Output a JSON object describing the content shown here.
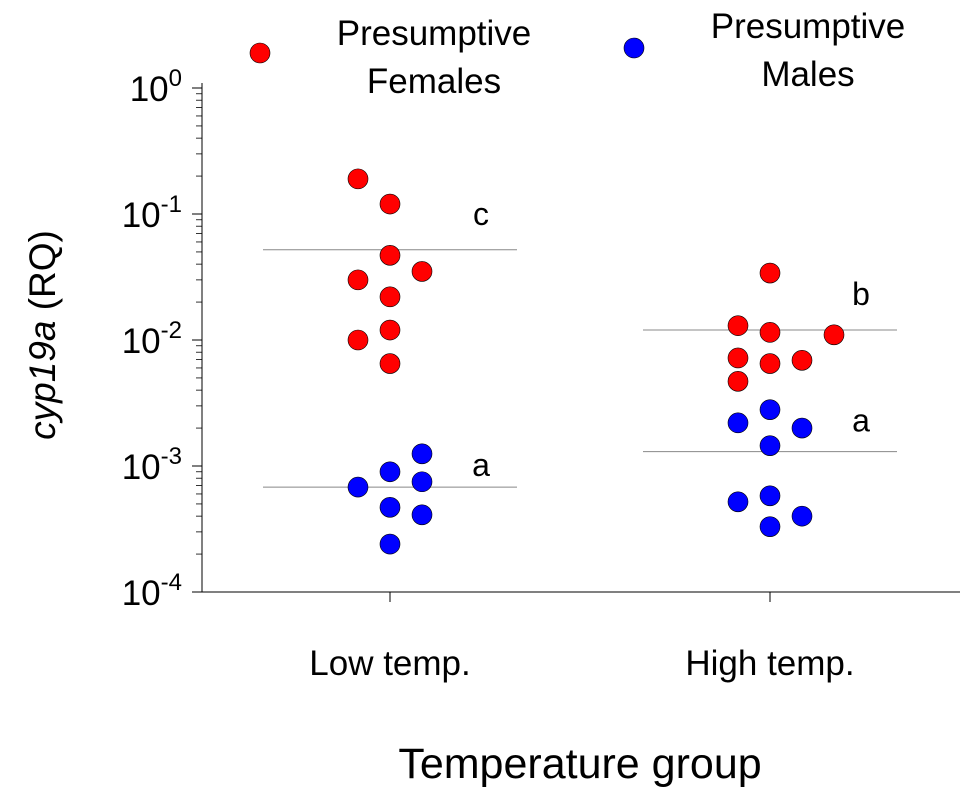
{
  "chart_data": {
    "type": "scatter",
    "xlabel": "Temperature group",
    "ylabel": {
      "italic": "cyp19a",
      "rest": " (RQ)"
    },
    "y_scale": "log",
    "ylim": [
      0.0001,
      1
    ],
    "y_ticks": [
      {
        "base": "10",
        "exp": "0",
        "value": 1
      },
      {
        "base": "10",
        "exp": "-1",
        "value": 0.1
      },
      {
        "base": "10",
        "exp": "-2",
        "value": 0.01
      },
      {
        "base": "10",
        "exp": "-3",
        "value": 0.001
      },
      {
        "base": "10",
        "exp": "-4",
        "value": 0.0001
      }
    ],
    "categories": [
      "Low temp.",
      "High temp."
    ],
    "legend": {
      "placement": "top",
      "entries": [
        {
          "lines": [
            "Presumptive",
            "Females"
          ],
          "color": "#ff0000"
        },
        {
          "lines": [
            "Presumptive",
            "Males"
          ],
          "color": "#0000ff"
        }
      ]
    },
    "series": [
      {
        "name": "Presumptive Females",
        "color": "#ff0000",
        "groups": [
          {
            "category": "Low temp.",
            "points": [
              {
                "offset": -1,
                "y": 0.19
              },
              {
                "offset": 0,
                "y": 0.12
              },
              {
                "offset": 0,
                "y": 0.047
              },
              {
                "offset": -1,
                "y": 0.03
              },
              {
                "offset": 1,
                "y": 0.035
              },
              {
                "offset": 0,
                "y": 0.022
              },
              {
                "offset": 0,
                "y": 0.012
              },
              {
                "offset": -1,
                "y": 0.01
              },
              {
                "offset": 0,
                "y": 0.0065
              }
            ],
            "mean": 0.052,
            "label": "c"
          },
          {
            "category": "High temp.",
            "points": [
              {
                "offset": 0,
                "y": 0.034
              },
              {
                "offset": -1,
                "y": 0.013
              },
              {
                "offset": 0,
                "y": 0.0115
              },
              {
                "offset": 2,
                "y": 0.011
              },
              {
                "offset": -1,
                "y": 0.0072
              },
              {
                "offset": 0,
                "y": 0.0065
              },
              {
                "offset": 1,
                "y": 0.0069
              },
              {
                "offset": -1,
                "y": 0.0047
              }
            ],
            "mean": 0.012,
            "label": "b"
          }
        ]
      },
      {
        "name": "Presumptive Males",
        "color": "#0000ff",
        "groups": [
          {
            "category": "Low temp.",
            "points": [
              {
                "offset": 1,
                "y": 0.00125
              },
              {
                "offset": 0,
                "y": 0.0009
              },
              {
                "offset": 1,
                "y": 0.00075
              },
              {
                "offset": -1,
                "y": 0.00068
              },
              {
                "offset": 0,
                "y": 0.00047
              },
              {
                "offset": 1,
                "y": 0.00041
              },
              {
                "offset": 0,
                "y": 0.00024
              }
            ],
            "mean": 0.00068,
            "label": "a"
          },
          {
            "category": "High temp.",
            "points": [
              {
                "offset": 0,
                "y": 0.0028
              },
              {
                "offset": -1,
                "y": 0.0022
              },
              {
                "offset": 1,
                "y": 0.002
              },
              {
                "offset": 0,
                "y": 0.00145
              },
              {
                "offset": 0,
                "y": 0.00058
              },
              {
                "offset": -1,
                "y": 0.00052
              },
              {
                "offset": 1,
                "y": 0.0004
              },
              {
                "offset": 0,
                "y": 0.00033
              }
            ],
            "mean": 0.0013,
            "label": "a"
          }
        ]
      }
    ]
  }
}
